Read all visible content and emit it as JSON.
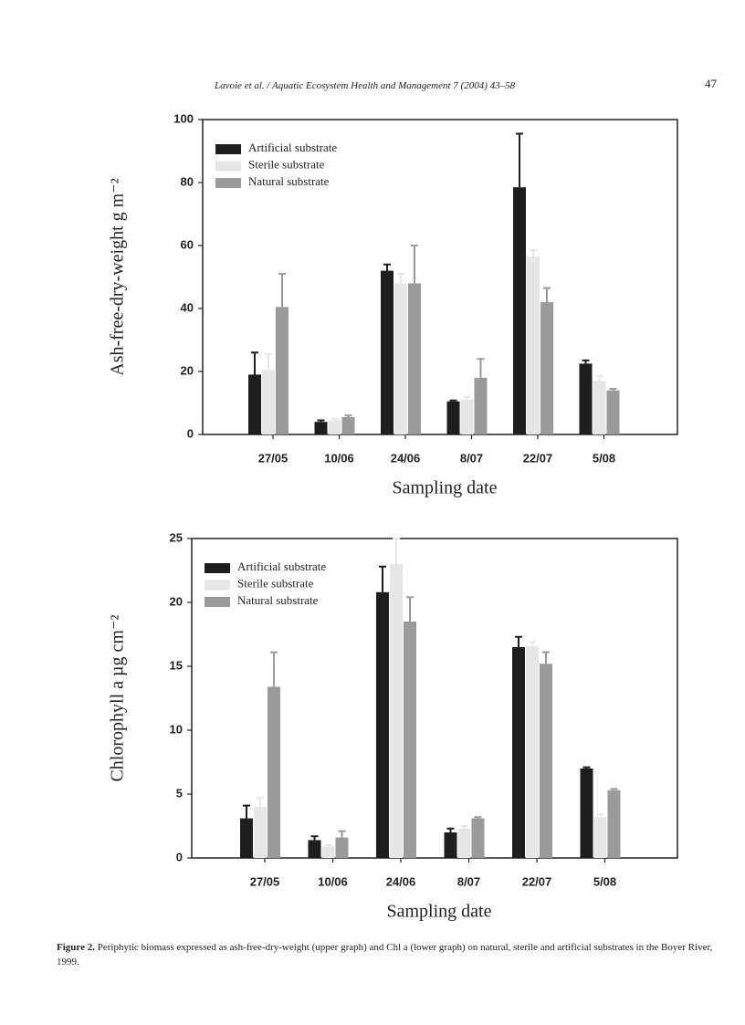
{
  "header": {
    "running_title": "Lavoie et al. / Aquatic Ecosystem Health and Management 7 (2004) 43–58",
    "page_number": "47"
  },
  "chart_data": [
    {
      "type": "bar",
      "xlabel": "Sampling date",
      "ylabel": "Ash-free-dry-weight g m⁻²",
      "categories": [
        "27/05",
        "10/06",
        "24/06",
        "8/07",
        "22/07",
        "5/08"
      ],
      "ylim": [
        0,
        100
      ],
      "yticks": [
        0,
        20,
        40,
        60,
        80,
        100
      ],
      "legend": "upper left",
      "series": [
        {
          "name": "Artificial substrate",
          "color": "#1e1e1e",
          "values": [
            19,
            4,
            52,
            10.5,
            78.5,
            22.5
          ],
          "errors": [
            7,
            0.5,
            2,
            0.3,
            17,
            1
          ]
        },
        {
          "name": "Sterile substrate",
          "color": "#e6e6e6",
          "values": [
            20.5,
            4.5,
            48,
            11,
            56.5,
            17
          ],
          "errors": [
            5,
            0.5,
            3,
            1,
            2,
            1.5
          ]
        },
        {
          "name": "Natural substrate",
          "color": "#9a9a9a",
          "values": [
            40.5,
            5.5,
            48,
            18,
            42,
            14
          ],
          "errors": [
            10.5,
            0.5,
            12,
            6,
            4.5,
            0.5
          ]
        }
      ]
    },
    {
      "type": "bar",
      "xlabel": "Sampling date",
      "ylabel": "Chlorophyll a µg cm⁻²",
      "categories": [
        "27/05",
        "10/06",
        "24/06",
        "8/07",
        "22/07",
        "5/08"
      ],
      "ylim": [
        0,
        25
      ],
      "yticks": [
        0,
        5,
        10,
        15,
        20,
        25
      ],
      "legend": "upper left",
      "series": [
        {
          "name": "Artificial substrate",
          "color": "#1e1e1e",
          "values": [
            3.1,
            1.4,
            20.8,
            2.0,
            16.5,
            7.0
          ],
          "errors": [
            1.0,
            0.3,
            2.0,
            0.3,
            0.8,
            0.1
          ]
        },
        {
          "name": "Sterile substrate",
          "color": "#e6e6e6",
          "values": [
            4.0,
            0.9,
            23.0,
            2.3,
            16.6,
            3.2
          ],
          "errors": [
            0.7,
            0.1,
            2.0,
            0.2,
            0.3,
            0.2
          ]
        },
        {
          "name": "Natural substrate",
          "color": "#9a9a9a",
          "values": [
            13.4,
            1.6,
            18.5,
            3.1,
            15.2,
            5.3
          ],
          "errors": [
            2.7,
            0.5,
            1.9,
            0.1,
            0.9,
            0.1
          ]
        }
      ]
    }
  ],
  "caption": {
    "label": "Figure 2.",
    "text": "Periphytic biomass expressed as ash-free-dry-weight (upper graph) and Chl a (lower graph) on natural, sterile and artificial substrates in the Boyer River, 1999."
  }
}
